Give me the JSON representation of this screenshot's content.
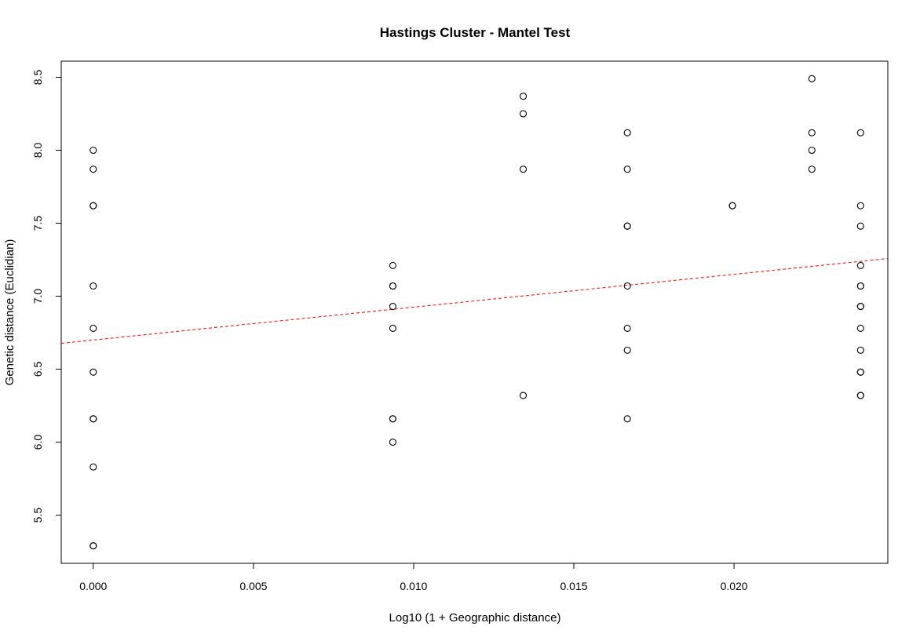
{
  "chart_data": {
    "type": "scatter",
    "title": "Hastings Cluster - Mantel Test",
    "xlabel": "Log10 (1 + Geographic distance)",
    "ylabel": "Genetic distance (Euclidian)",
    "xlim": [
      -0.001,
      0.0248
    ],
    "ylim": [
      5.17,
      8.61
    ],
    "x_ticks": [
      0.0,
      0.005,
      0.01,
      0.015,
      0.02
    ],
    "x_tick_labels": [
      "0.000",
      "0.005",
      "0.010",
      "0.015",
      "0.020"
    ],
    "y_ticks": [
      5.5,
      6.0,
      6.5,
      7.0,
      7.5,
      8.0,
      8.5
    ],
    "y_tick_labels": [
      "5.5",
      "6.0",
      "6.5",
      "7.0",
      "7.5",
      "8.0",
      "8.5"
    ],
    "grid": false,
    "points": [
      {
        "x": 0.0,
        "y": 8.0
      },
      {
        "x": 0.0,
        "y": 7.87
      },
      {
        "x": 0.0,
        "y": 7.62
      },
      {
        "x": 0.0,
        "y": 7.62
      },
      {
        "x": 0.0,
        "y": 7.07
      },
      {
        "x": 0.0,
        "y": 6.78
      },
      {
        "x": 0.0,
        "y": 6.48
      },
      {
        "x": 0.0,
        "y": 6.16
      },
      {
        "x": 0.0,
        "y": 6.16
      },
      {
        "x": 0.0,
        "y": 5.83
      },
      {
        "x": 0.0,
        "y": 5.29
      },
      {
        "x": 0.0,
        "y": 5.29
      },
      {
        "x": 0.00935,
        "y": 7.21
      },
      {
        "x": 0.00935,
        "y": 7.07
      },
      {
        "x": 0.00935,
        "y": 7.07
      },
      {
        "x": 0.00935,
        "y": 6.93
      },
      {
        "x": 0.00935,
        "y": 6.78
      },
      {
        "x": 0.00935,
        "y": 6.16
      },
      {
        "x": 0.00935,
        "y": 6.16
      },
      {
        "x": 0.00935,
        "y": 6.0
      },
      {
        "x": 0.01342,
        "y": 8.37
      },
      {
        "x": 0.01342,
        "y": 8.25
      },
      {
        "x": 0.01342,
        "y": 7.87
      },
      {
        "x": 0.01342,
        "y": 6.32
      },
      {
        "x": 0.01667,
        "y": 8.12
      },
      {
        "x": 0.01667,
        "y": 7.87
      },
      {
        "x": 0.01667,
        "y": 7.48
      },
      {
        "x": 0.01667,
        "y": 7.48
      },
      {
        "x": 0.01667,
        "y": 7.07
      },
      {
        "x": 0.01667,
        "y": 6.78
      },
      {
        "x": 0.01667,
        "y": 6.63
      },
      {
        "x": 0.01667,
        "y": 6.16
      },
      {
        "x": 0.01995,
        "y": 7.62
      },
      {
        "x": 0.01995,
        "y": 7.62
      },
      {
        "x": 0.02243,
        "y": 8.49
      },
      {
        "x": 0.02243,
        "y": 8.12
      },
      {
        "x": 0.02243,
        "y": 8.0
      },
      {
        "x": 0.02243,
        "y": 7.87
      },
      {
        "x": 0.02395,
        "y": 8.12
      },
      {
        "x": 0.02395,
        "y": 7.62
      },
      {
        "x": 0.02395,
        "y": 7.48
      },
      {
        "x": 0.02395,
        "y": 7.21
      },
      {
        "x": 0.02395,
        "y": 7.07
      },
      {
        "x": 0.02395,
        "y": 7.07
      },
      {
        "x": 0.02395,
        "y": 6.93
      },
      {
        "x": 0.02395,
        "y": 6.93
      },
      {
        "x": 0.02395,
        "y": 6.78
      },
      {
        "x": 0.02395,
        "y": 6.63
      },
      {
        "x": 0.02395,
        "y": 6.48
      },
      {
        "x": 0.02395,
        "y": 6.48
      },
      {
        "x": 0.02395,
        "y": 6.32
      },
      {
        "x": 0.02395,
        "y": 6.32
      }
    ],
    "trend_line": {
      "style": "dashed",
      "color": "#ff0000",
      "intercept": 6.7,
      "slope": 22.5
    },
    "point_color": "#000000"
  }
}
